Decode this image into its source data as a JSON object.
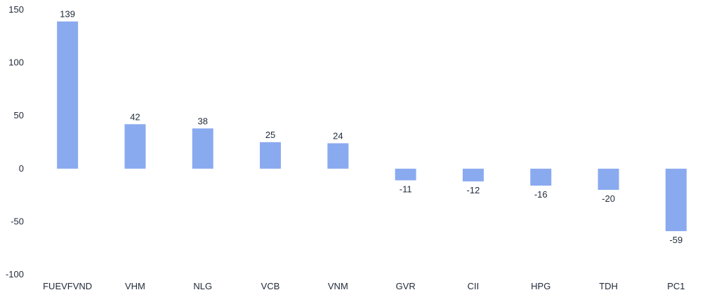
{
  "chart_data": {
    "type": "bar",
    "categories": [
      "FUEVFVND",
      "VHM",
      "NLG",
      "VCB",
      "VNM",
      "GVR",
      "CII",
      "HPG",
      "TDH",
      "PC1"
    ],
    "values": [
      139,
      42,
      38,
      25,
      24,
      -11,
      -12,
      -16,
      -20,
      -59
    ],
    "title": "",
    "xlabel": "",
    "ylabel": "",
    "ylim": [
      -100,
      150
    ],
    "yticks": [
      150,
      100,
      50,
      0,
      -50,
      -100
    ],
    "grid": false,
    "legend": "none",
    "bar_color": "#8aaaf0"
  }
}
